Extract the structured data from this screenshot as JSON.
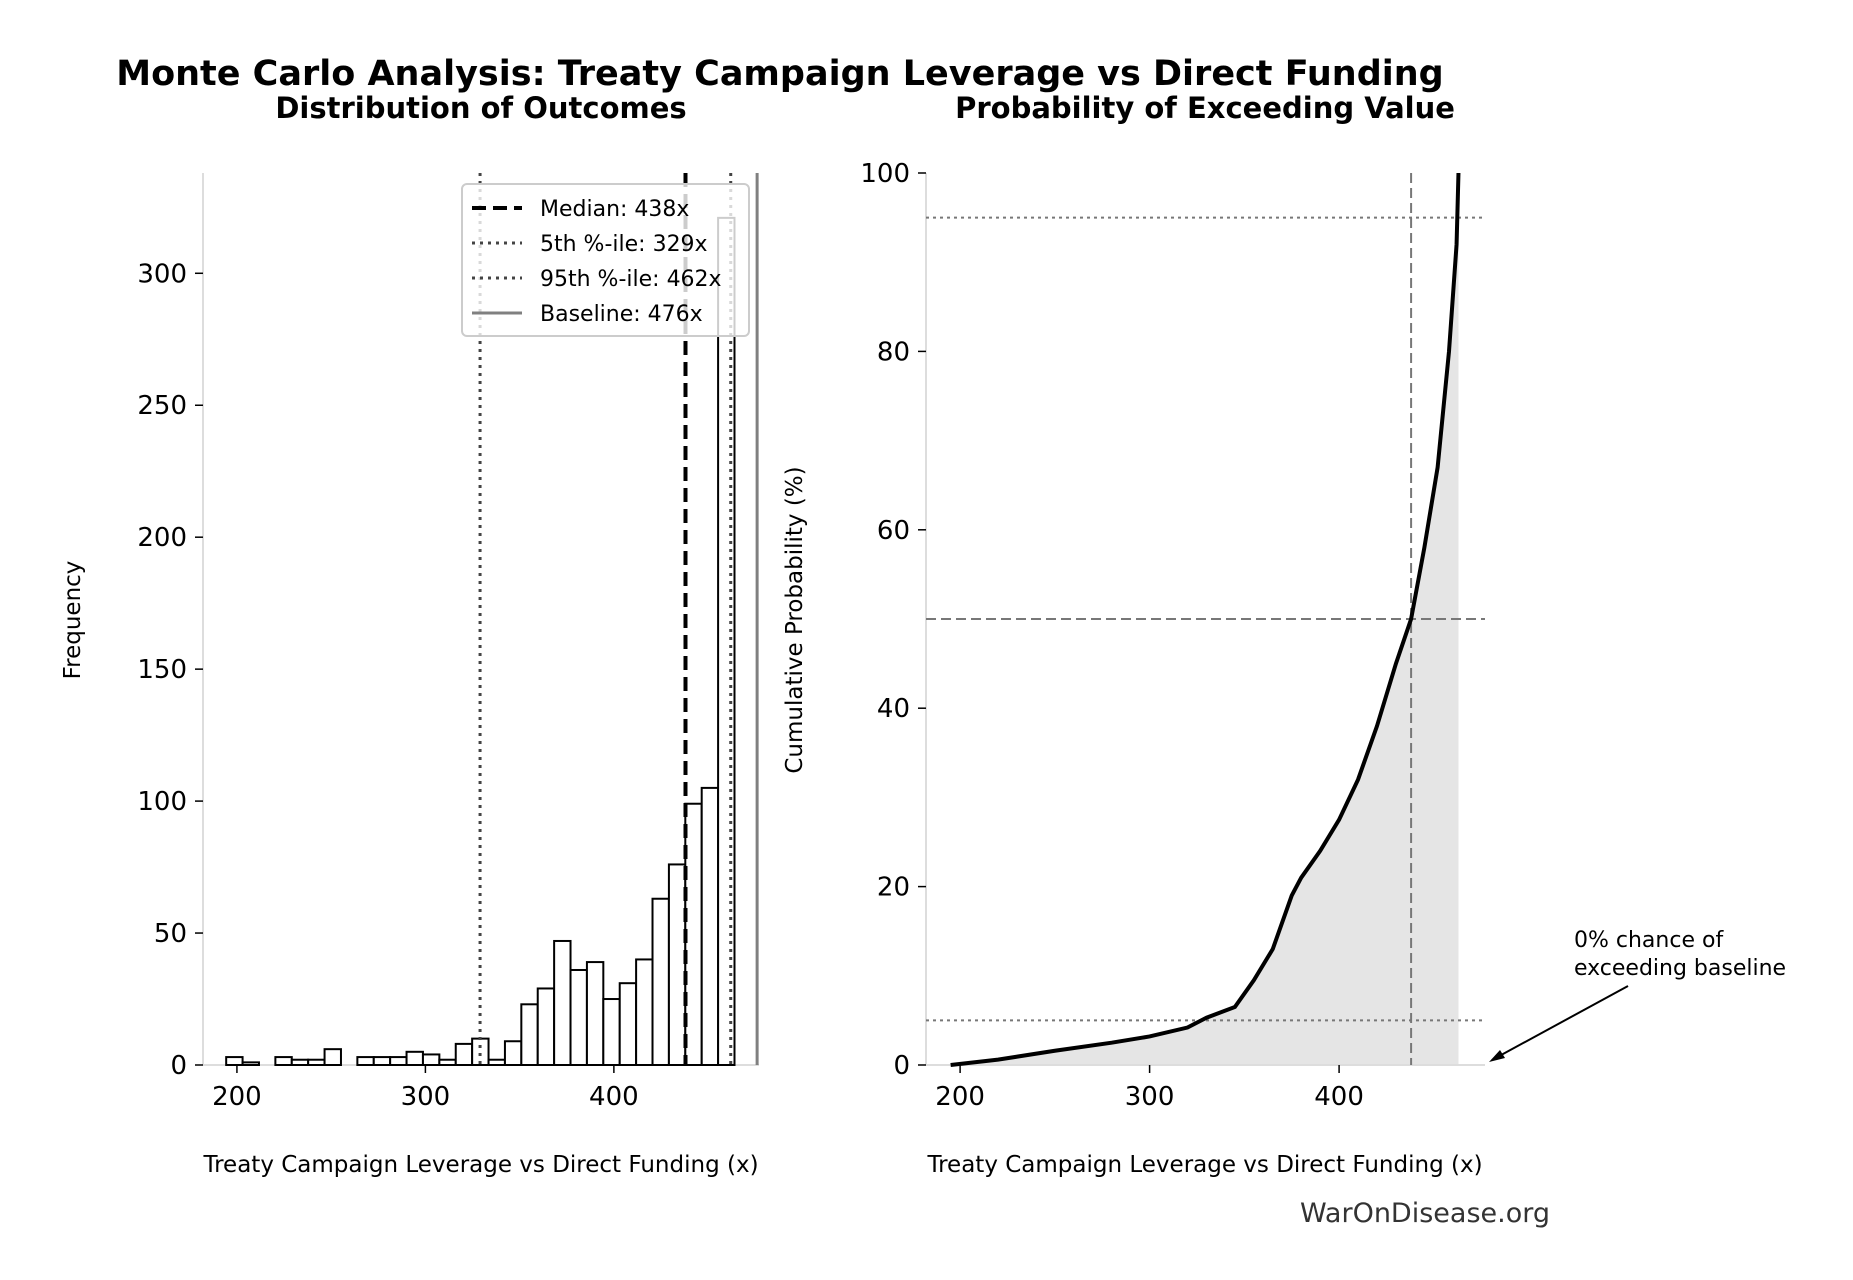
{
  "title": "Monte Carlo Analysis: Treaty Campaign Leverage vs Direct Funding",
  "watermark": "WarOnDisease.org",
  "colors": {
    "bar_fill": "#ffffff",
    "bar_edge": "#000000",
    "fill_area": "#e5e5e5",
    "baseline": "#808080",
    "percentile": "#444444"
  },
  "chart_data": [
    {
      "type": "bar",
      "title": "Distribution of Outcomes",
      "xlabel": "Treaty Campaign Leverage vs Direct Funding (x)",
      "ylabel": "Frequency",
      "xlim": [
        182,
        477
      ],
      "ylim": [
        0,
        338
      ],
      "xticks": [
        200,
        300,
        400
      ],
      "yticks": [
        0,
        50,
        100,
        150,
        200,
        250,
        300
      ],
      "bin_start": 194.3,
      "bin_width": 8.7,
      "counts": [
        3,
        1,
        0,
        3,
        2,
        2,
        6,
        0,
        3,
        3,
        3,
        5,
        4,
        2,
        8,
        10,
        2,
        9,
        23,
        29,
        47,
        36,
        39,
        25,
        31,
        40,
        63,
        76,
        99,
        105,
        321
      ],
      "reference_lines": [
        {
          "label": "Median: 438x",
          "value": 438,
          "style": "dashed",
          "color": "#000000"
        },
        {
          "label": "5th %-ile: 329x",
          "value": 329,
          "style": "dotted",
          "color": "#444444"
        },
        {
          "label": "95th %-ile: 462x",
          "value": 462,
          "style": "dotted",
          "color": "#444444"
        },
        {
          "label": "Baseline: 476x",
          "value": 476,
          "style": "solid",
          "color": "#808080"
        }
      ],
      "legend": "top-right",
      "grid": false
    },
    {
      "type": "area",
      "title": "Probability of Exceeding Value",
      "xlabel": "Treaty Campaign Leverage vs Direct Funding (x)",
      "ylabel": "Cumulative Probability (%)",
      "xlim": [
        182,
        477
      ],
      "ylim": [
        0,
        100
      ],
      "xticks": [
        200,
        300,
        400
      ],
      "yticks": [
        0,
        20,
        40,
        60,
        80,
        100
      ],
      "x": [
        195,
        220,
        250,
        280,
        300,
        320,
        330,
        345,
        355,
        365,
        375,
        380,
        390,
        400,
        410,
        420,
        430,
        438,
        445,
        452,
        458,
        462,
        463
      ],
      "y": [
        0,
        0.6,
        1.6,
        2.5,
        3.2,
        4.2,
        5.3,
        6.5,
        9.5,
        13,
        19,
        21,
        24,
        27.5,
        32,
        38,
        45,
        50,
        58,
        67,
        80,
        92,
        100
      ],
      "horizontal_lines": [
        95,
        50,
        5
      ],
      "vertical_line": 438,
      "annotation": "0% chance of\nexceeding baseline",
      "annotation_lines": [
        "0% chance of",
        "exceeding baseline"
      ],
      "grid": false
    }
  ]
}
